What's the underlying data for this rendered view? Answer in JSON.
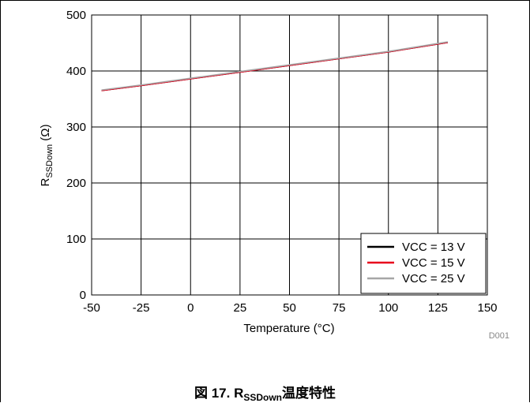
{
  "chart_data": {
    "type": "line",
    "title": "",
    "xlabel": "Temperature (°C)",
    "ylabel": {
      "main": "R",
      "sub": "SSDown",
      "unit": " (Ω)"
    },
    "xlim": [
      -50,
      150
    ],
    "ylim": [
      0,
      500
    ],
    "xticks": [
      -50,
      -25,
      0,
      25,
      50,
      75,
      100,
      125,
      150
    ],
    "yticks": [
      0,
      100,
      200,
      300,
      400,
      500
    ],
    "grid": true,
    "legend_position": "bottom-right",
    "series": [
      {
        "name": "VCC = 13 V",
        "color": "#000000",
        "x": [
          -45,
          -25,
          0,
          25,
          50,
          75,
          100,
          130
        ],
        "y": [
          365,
          374,
          386,
          398,
          410,
          422,
          434,
          451
        ]
      },
      {
        "name": "VCC = 15 V",
        "color": "#e8001c",
        "x": [
          -45,
          -25,
          0,
          25,
          50,
          75,
          100,
          130
        ],
        "y": [
          365,
          374,
          386,
          398,
          410,
          422,
          434,
          451
        ]
      },
      {
        "name": "VCC = 25 V",
        "color": "#a6a6a6",
        "x": [
          -45,
          -25,
          0,
          25,
          50,
          75,
          100,
          130
        ],
        "y": [
          366,
          375,
          387,
          399,
          411,
          423,
          435,
          452
        ]
      }
    ],
    "watermark": "D001"
  },
  "caption": {
    "prefix": "図 17. R",
    "sub": "SSDown",
    "suffix": "温度特性"
  }
}
